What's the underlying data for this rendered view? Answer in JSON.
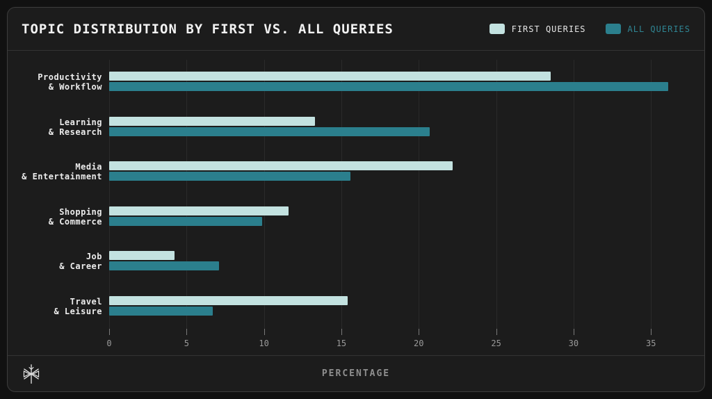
{
  "header": {
    "title": "TOPIC DISTRIBUTION BY FIRST VS. ALL QUERIES"
  },
  "legend": {
    "items": [
      {
        "label": "FIRST QUERIES",
        "swatch_color": "#c3e2e0",
        "label_color": "#e6e6e6"
      },
      {
        "label": "ALL QUERIES",
        "swatch_color": "#2b7f8d",
        "label_color": "#2f8593"
      }
    ]
  },
  "footer": {
    "axis_title": "PERCENTAGE",
    "logo_icon": "starburst-logo"
  },
  "theme": {
    "page_background": "#111111",
    "card_background": "#1c1c1c",
    "card_border": "#3d3d3d",
    "grid_color": "#2a2a2a",
    "text_primary": "#f2f2f2",
    "text_muted": "#9a9a9a"
  },
  "chart_data": {
    "type": "bar",
    "orientation": "horizontal",
    "title": "TOPIC DISTRIBUTION BY FIRST VS. ALL QUERIES",
    "xlabel": "PERCENTAGE",
    "categories": [
      "Productivity & Workflow",
      "Learning & Research",
      "Media & Entertainment",
      "Shopping & Commerce",
      "Job & Career",
      "Travel & Leisure"
    ],
    "category_lines": [
      [
        "Productivity",
        "& Workflow"
      ],
      [
        "Learning",
        "& Research"
      ],
      [
        "Media",
        "& Entertainment"
      ],
      [
        "Shopping",
        "& Commerce"
      ],
      [
        "Job",
        "& Career"
      ],
      [
        "Travel",
        "& Leisure"
      ]
    ],
    "series": [
      {
        "name": "FIRST QUERIES",
        "color": "#c3e2e0",
        "values": [
          28.5,
          13.3,
          22.2,
          11.6,
          4.2,
          15.4
        ]
      },
      {
        "name": "ALL QUERIES",
        "color": "#2b7f8d",
        "values": [
          36.1,
          20.7,
          15.6,
          9.9,
          7.1,
          6.7
        ]
      }
    ],
    "xticks": [
      0,
      5,
      10,
      15,
      20,
      25,
      30,
      35
    ],
    "xlim": [
      0,
      38
    ],
    "grid": true,
    "legend_position": "top-right"
  }
}
